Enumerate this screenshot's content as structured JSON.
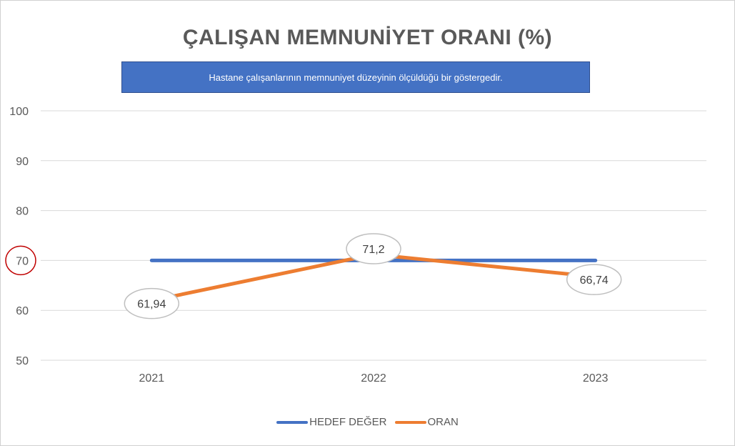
{
  "chart_data": {
    "type": "line",
    "title": "ÇALIŞAN MEMNUNİYET ORANI (%)",
    "subtitle": "Hastane çalışanlarının memnuniyet düzeyinin ölçüldüğü bir göstergedir.",
    "categories": [
      "2021",
      "2022",
      "2023"
    ],
    "ylim": [
      50,
      100
    ],
    "yticks": [
      "50",
      "60",
      "70",
      "80",
      "90",
      "100"
    ],
    "ytick_values": [
      50,
      60,
      70,
      80,
      90,
      100
    ],
    "highlighted_ytick": "70",
    "grid": true,
    "legend_position": "bottom",
    "series": [
      {
        "name": "HEDEF DEĞER",
        "values": [
          70,
          70,
          70
        ],
        "color": "#4472c4",
        "labels": [
          "",
          "",
          ""
        ]
      },
      {
        "name": "ORAN",
        "values": [
          61.94,
          71.2,
          66.74
        ],
        "color": "#ed7d31",
        "labels": [
          "61,94",
          "71,2",
          "66,74"
        ]
      }
    ],
    "highlight_color": "#c00000"
  }
}
